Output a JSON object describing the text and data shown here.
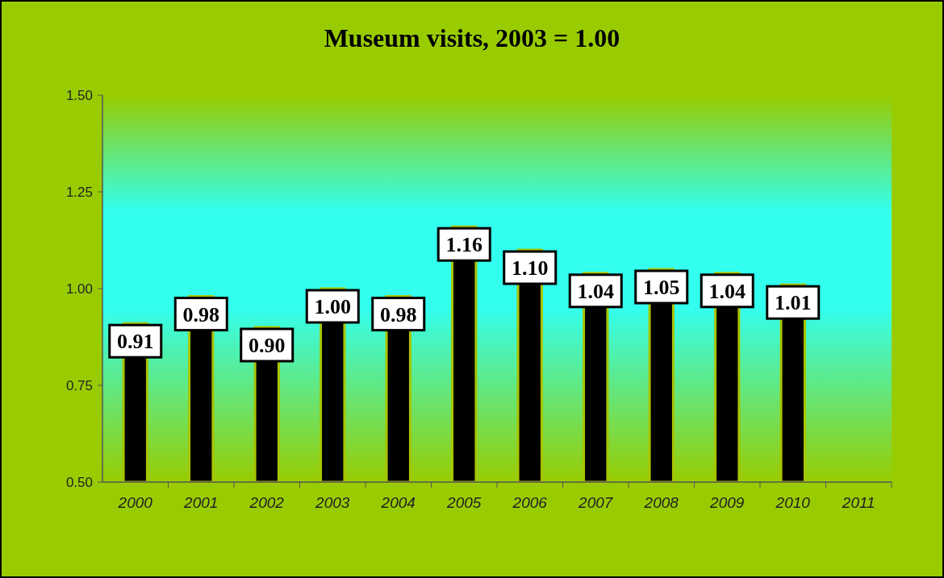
{
  "chart_data": {
    "type": "bar",
    "title": "Museum visits, 2003 = 1.00",
    "categories": [
      "2000",
      "2001",
      "2002",
      "2003",
      "2004",
      "2005",
      "2006",
      "2007",
      "2008",
      "2009",
      "2010",
      "2011"
    ],
    "values": [
      0.91,
      0.98,
      0.9,
      1.0,
      0.98,
      1.16,
      1.1,
      1.04,
      1.05,
      1.04,
      1.01,
      null
    ],
    "color": "#000000",
    "ylim": [
      0.5,
      1.5
    ],
    "yticks": [
      {
        "value": 0.5,
        "label": "0.50"
      },
      {
        "value": 0.75,
        "label": "0.75"
      },
      {
        "value": 1,
        "label": "1.00"
      },
      {
        "value": 1.25,
        "label": "1.25"
      },
      {
        "value": 1.5,
        "label": "1.50"
      }
    ],
    "value_labels": [
      "0.91",
      "0.98",
      "0.90",
      "1.00",
      "0.98",
      "1.16",
      "1.10",
      "1.04",
      "1.05",
      "1.04",
      "1.01",
      null
    ],
    "grid": false
  }
}
